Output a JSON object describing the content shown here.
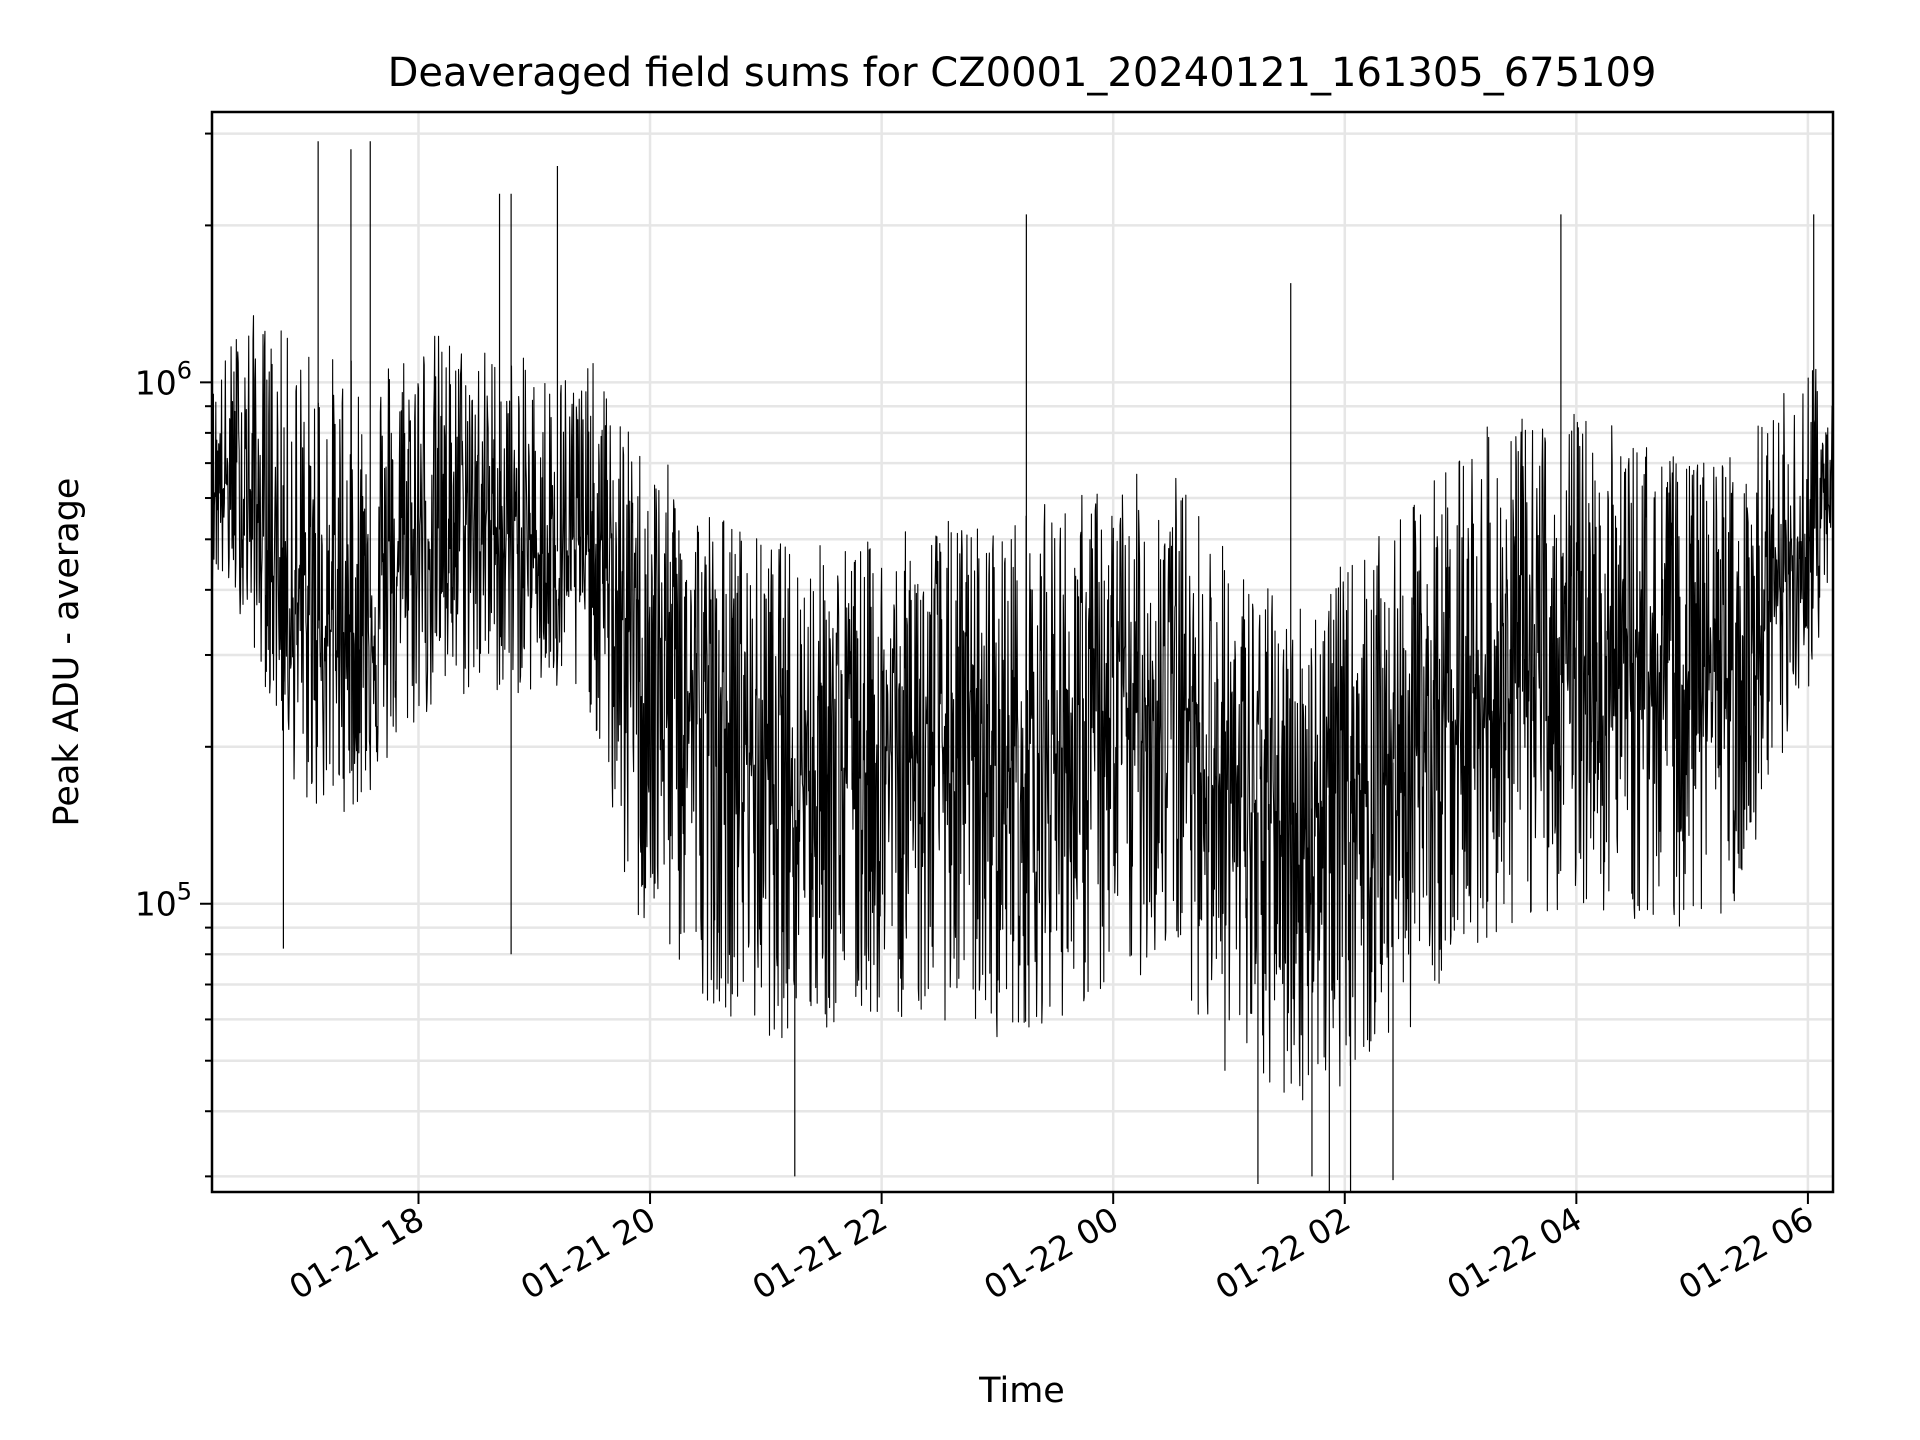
{
  "chart_data": {
    "type": "line",
    "title": "Deaveraged field sums for CZ0001_20240121_161305_675109",
    "xlabel": "Time",
    "ylabel": "Peak ADU - average",
    "x_range": [
      "2024-01-21 16:13",
      "2024-01-22 06:13"
    ],
    "y_scale": "log",
    "ylim": [
      28000,
      3300000
    ],
    "grid": true,
    "line_color": "#000000",
    "x_ticks": [
      {
        "value": "2024-01-21 18:00",
        "label": "01-21 18"
      },
      {
        "value": "2024-01-21 20:00",
        "label": "01-21 20"
      },
      {
        "value": "2024-01-21 22:00",
        "label": "01-21 22"
      },
      {
        "value": "2024-01-22 00:00",
        "label": "01-22 00"
      },
      {
        "value": "2024-01-22 02:00",
        "label": "01-22 02"
      },
      {
        "value": "2024-01-22 04:00",
        "label": "01-22 04"
      },
      {
        "value": "2024-01-22 06:00",
        "label": "01-22 06"
      }
    ],
    "y_ticks": [
      {
        "value": 100000,
        "base": "10",
        "exp": "5"
      },
      {
        "value": 1000000,
        "base": "10",
        "exp": "6"
      }
    ],
    "series": [
      {
        "x": [
          "2024-01-21 16:13",
          "2024-01-21 16:30",
          "2024-01-21 17:00",
          "2024-01-21 17:30",
          "2024-01-21 18:00",
          "2024-01-21 18:30",
          "2024-01-21 19:00",
          "2024-01-21 19:30",
          "2024-01-21 19:50",
          "2024-01-21 20:30",
          "2024-01-21 21:00",
          "2024-01-21 21:30",
          "2024-01-21 22:00",
          "2024-01-21 22:30",
          "2024-01-21 23:00",
          "2024-01-21 23:30",
          "2024-01-22 00:00",
          "2024-01-22 00:30",
          "2024-01-22 01:00",
          "2024-01-22 01:30",
          "2024-01-22 02:00",
          "2024-01-22 02:30",
          "2024-01-22 03:00",
          "2024-01-22 03:30",
          "2024-01-22 04:00",
          "2024-01-22 04:30",
          "2024-01-22 05:00",
          "2024-01-22 05:30",
          "2024-01-22 06:00",
          "2024-01-22 06:13"
        ],
        "median": [
          650000,
          620000,
          340000,
          330000,
          500000,
          560000,
          470000,
          480000,
          330000,
          220000,
          190000,
          190000,
          190000,
          200000,
          180000,
          200000,
          210000,
          270000,
          160000,
          140000,
          170000,
          190000,
          240000,
          260000,
          280000,
          290000,
          260000,
          280000,
          500000,
          610000
        ],
        "upper": [
          1000000,
          1400000,
          1200000,
          1100000,
          1300000,
          1200000,
          1100000,
          1100000,
          800000,
          600000,
          500000,
          500000,
          500000,
          550000,
          550000,
          600000,
          650000,
          700000,
          480000,
          380000,
          450000,
          550000,
          800000,
          850000,
          900000,
          800000,
          700000,
          800000,
          1100000,
          1200000
        ],
        "lower": [
          420000,
          350000,
          150000,
          150000,
          220000,
          250000,
          250000,
          230000,
          90000,
          65000,
          55000,
          55000,
          60000,
          60000,
          55000,
          60000,
          65000,
          80000,
          45000,
          40000,
          45000,
          55000,
          80000,
          90000,
          100000,
          90000,
          90000,
          100000,
          250000,
          450000
        ]
      }
    ],
    "spikes": [
      {
        "x": "2024-01-21 17:08",
        "y": 2900000
      },
      {
        "x": "2024-01-21 17:25",
        "y": 2800000
      },
      {
        "x": "2024-01-21 17:35",
        "y": 2900000
      },
      {
        "x": "2024-01-21 19:12",
        "y": 2600000
      },
      {
        "x": "2024-01-21 18:42",
        "y": 2300000
      },
      {
        "x": "2024-01-21 23:15",
        "y": 2100000
      },
      {
        "x": "2024-01-22 01:32",
        "y": 1550000
      },
      {
        "x": "2024-01-22 03:52",
        "y": 2100000
      },
      {
        "x": "2024-01-22 06:03",
        "y": 2100000
      },
      {
        "x": "2024-01-21 18:48",
        "y": 2300000
      },
      {
        "x": "2024-01-21 16:50",
        "y": 82000
      },
      {
        "x": "2024-01-21 18:48",
        "y": 80000
      },
      {
        "x": "2024-01-21 21:15",
        "y": 30000
      },
      {
        "x": "2024-01-22 01:15",
        "y": 29000
      },
      {
        "x": "2024-01-22 01:52",
        "y": 25000
      },
      {
        "x": "2024-01-22 02:03",
        "y": 23000
      },
      {
        "x": "2024-01-22 02:25",
        "y": 29500
      },
      {
        "x": "2024-01-22 01:43",
        "y": 30000
      }
    ]
  }
}
